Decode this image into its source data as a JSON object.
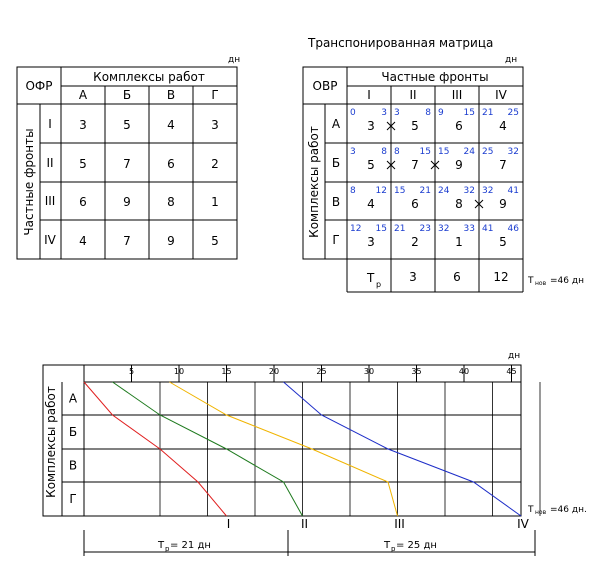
{
  "unit_top_left": "дн",
  "unit_top_right": "дн",
  "unit_bottom": "дн",
  "table1": {
    "corner": "ОФР",
    "col_group": "Комплексы работ",
    "row_group": "Частные фронты",
    "cols": [
      "А",
      "Б",
      "В",
      "Г"
    ],
    "rows": [
      "I",
      "II",
      "III",
      "IV"
    ],
    "values": [
      [
        "3",
        "5",
        "4",
        "3"
      ],
      [
        "5",
        "7",
        "6",
        "2"
      ],
      [
        "6",
        "9",
        "8",
        "1"
      ],
      [
        "4",
        "7",
        "9",
        "5"
      ]
    ]
  },
  "table2": {
    "title": "Транспонированная матрица",
    "corner": "ОВР",
    "col_group": "Частные фронты",
    "row_group": "Комплексы работ",
    "cols": [
      "I",
      "II",
      "III",
      "IV"
    ],
    "rows": [
      "А",
      "Б",
      "В",
      "Г"
    ],
    "cells": [
      [
        [
          "0",
          "3",
          "3"
        ],
        [
          "3",
          "8",
          "5"
        ],
        [
          "9",
          "15",
          "6"
        ],
        [
          "21",
          "25",
          "4"
        ]
      ],
      [
        [
          "3",
          "8",
          "5"
        ],
        [
          "8",
          "15",
          "7"
        ],
        [
          "15",
          "24",
          "9"
        ],
        [
          "25",
          "32",
          "7"
        ]
      ],
      [
        [
          "8",
          "12",
          "4"
        ],
        [
          "15",
          "21",
          "6"
        ],
        [
          "24",
          "32",
          "8"
        ],
        [
          "32",
          "41",
          "9"
        ]
      ],
      [
        [
          "12",
          "15",
          "3"
        ],
        [
          "21",
          "23",
          "2"
        ],
        [
          "32",
          "33",
          "1"
        ],
        [
          "41",
          "46",
          "5"
        ]
      ]
    ],
    "tp_label": "Т",
    "tp_sub": "р",
    "tp_values": [
      "3",
      "6",
      "12"
    ],
    "total_prefix": "Т",
    "total_sub": "нов",
    "total_value": "=46 дн"
  },
  "gantt": {
    "row_group": "Комплексы работ",
    "rows": [
      "А",
      "Б",
      "В",
      "Г"
    ],
    "ticks": [
      "5",
      "10",
      "15",
      "20",
      "25",
      "30",
      "35",
      "40",
      "45"
    ],
    "front_labels": [
      "I",
      "II",
      "III",
      "IV"
    ],
    "total_prefix": "Т",
    "total_sub": "нов",
    "total_value": "=46 дн.",
    "dim1_prefix": "Т",
    "dim1_sub": "р",
    "dim1_value": "= 21 дн",
    "dim2_prefix": "Т",
    "dim2_sub": "р",
    "dim2_value": "= 25 дн"
  },
  "chart_data": {
    "type": "line",
    "x_unit": "дн",
    "categories": [
      "А",
      "Б",
      "В",
      "Г"
    ],
    "series": [
      {
        "name": "I",
        "color": "#e02020",
        "points": [
          [
            0,
            0
          ],
          [
            3,
            1
          ],
          [
            8,
            2
          ],
          [
            12,
            3
          ],
          [
            15,
            4
          ]
        ]
      },
      {
        "name": "II",
        "color": "#1e7a1e",
        "points": [
          [
            3,
            0
          ],
          [
            8,
            1
          ],
          [
            15,
            2
          ],
          [
            21,
            3
          ],
          [
            23,
            4
          ]
        ]
      },
      {
        "name": "III",
        "color": "#f0b400",
        "points": [
          [
            9,
            0
          ],
          [
            15,
            1
          ],
          [
            24,
            2
          ],
          [
            32,
            3
          ],
          [
            33,
            4
          ]
        ]
      },
      {
        "name": "IV",
        "color": "#1e2ec8",
        "points": [
          [
            21,
            0
          ],
          [
            25,
            1
          ],
          [
            32,
            2
          ],
          [
            41,
            3
          ],
          [
            46,
            4
          ]
        ]
      }
    ],
    "xlim": [
      0,
      46
    ]
  }
}
